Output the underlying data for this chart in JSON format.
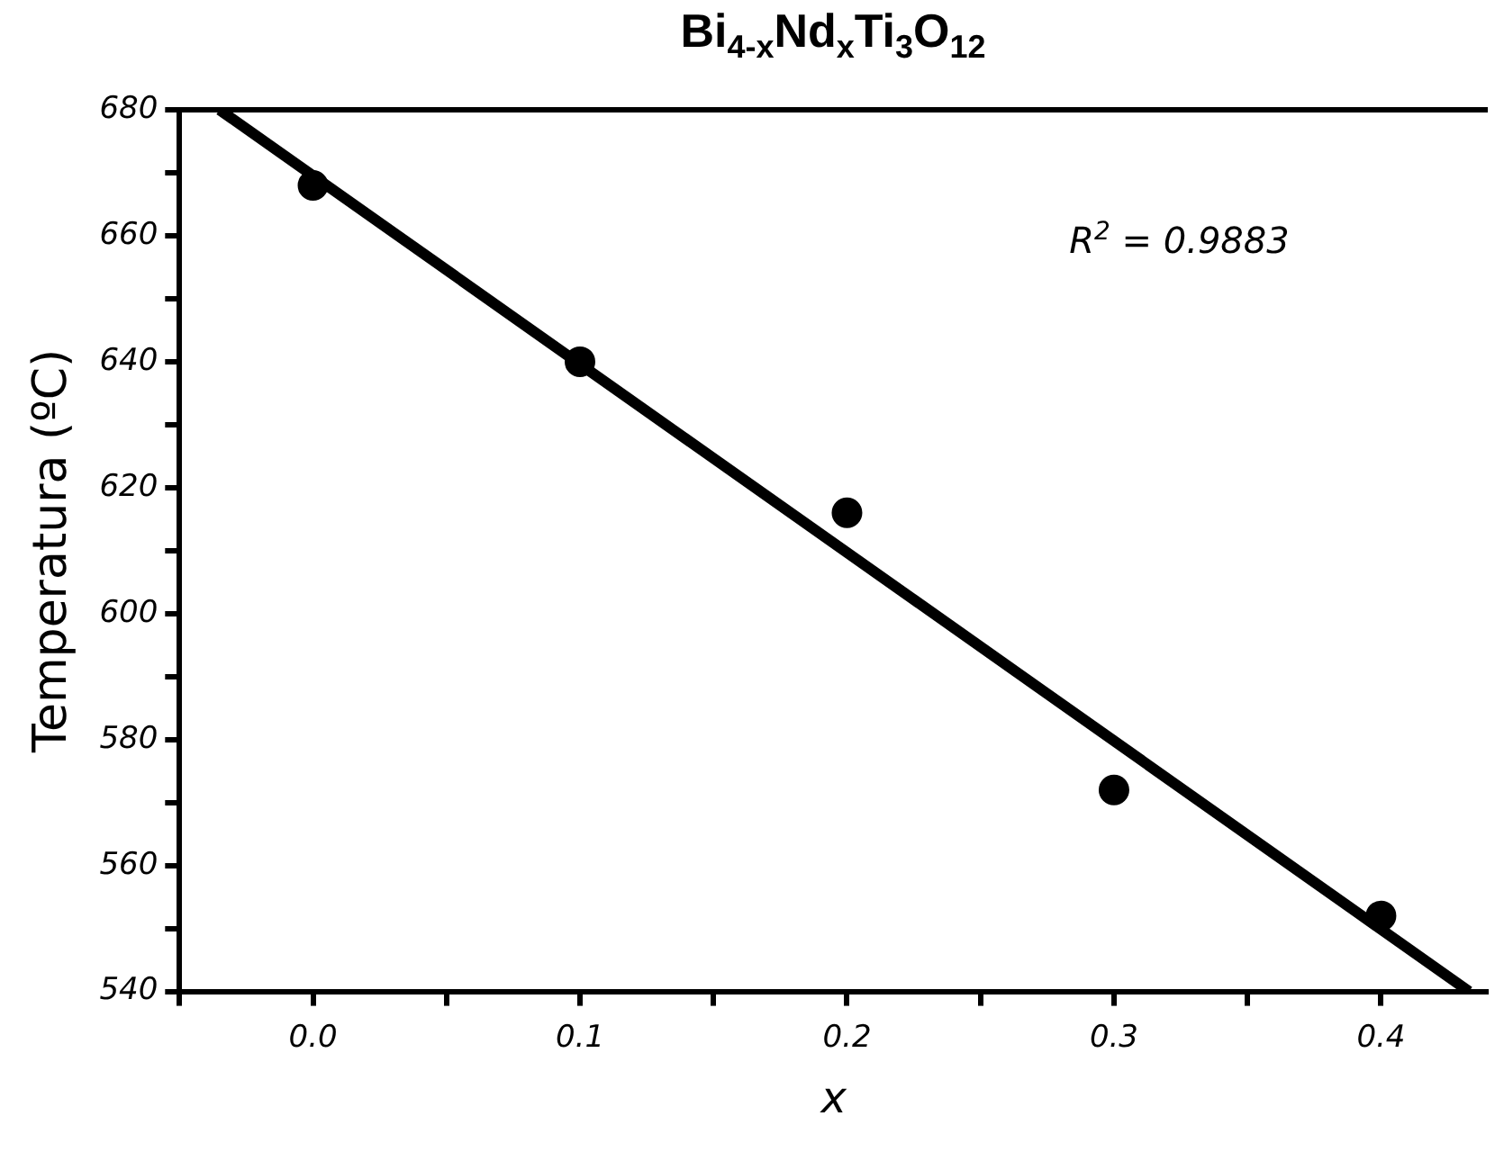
{
  "chart_data": {
    "type": "scatter",
    "title": "Bi$_{4-x}$Nd$_{x}$Ti$_{3}$O$_{12}$",
    "xlabel": "x",
    "ylabel": "Temperatura (ºC)",
    "annotations": [
      "R$^{2}$ = 0.9883"
    ],
    "series": [
      {
        "color": "#000000",
        "marker": "circle",
        "x": [
          0,
          0.1,
          0.2,
          0.3,
          0.4
        ],
        "values": [
          668,
          640,
          616,
          572,
          552
        ]
      },
      {
        "type": "line",
        "color": "#000000",
        "marker": "none",
        "line_style": "solid",
        "x": [
          -0.035,
          0.433
        ],
        "values": [
          680,
          540
        ]
      }
    ],
    "xlim": [
      -0.05,
      0.44
    ],
    "xticks": [
      {
        "value": -0.05,
        "label": null
      },
      {
        "value": 0,
        "label": "0.0"
      },
      {
        "value": 0.05,
        "label": null
      },
      {
        "value": 0.1,
        "label": "0.1"
      },
      {
        "value": 0.15,
        "label": null
      },
      {
        "value": 0.2,
        "label": "0.2"
      },
      {
        "value": 0.25,
        "label": null
      },
      {
        "value": 0.3,
        "label": "0.3"
      },
      {
        "value": 0.35,
        "label": null
      },
      {
        "value": 0.4,
        "label": "0.4"
      }
    ],
    "ylim": [
      540,
      680
    ],
    "yticks": [
      540,
      {
        "value": 550,
        "label": null
      },
      560,
      {
        "value": 570,
        "label": null
      },
      580,
      {
        "value": 590,
        "label": null
      },
      600,
      {
        "value": 610,
        "label": null
      },
      620,
      {
        "value": 630,
        "label": null
      },
      640,
      {
        "value": 650,
        "label": null
      },
      660,
      {
        "value": 670,
        "label": null
      },
      680
    ],
    "grid": false,
    "legend": false
  }
}
